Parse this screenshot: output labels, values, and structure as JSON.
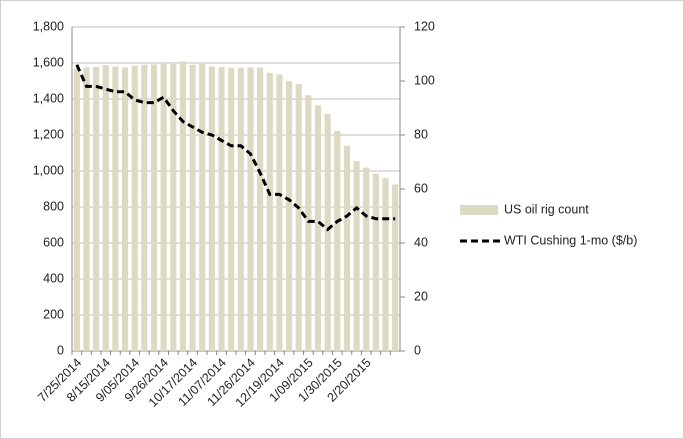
{
  "chart_data": {
    "type": "bar_line",
    "categories": [
      "7/25/2014",
      null,
      null,
      "8/15/2014",
      null,
      null,
      "9/05/2014",
      null,
      null,
      "9/26/2014",
      null,
      null,
      "10/17/2014",
      null,
      null,
      "11/07/2014",
      null,
      null,
      "11/26/2014",
      null,
      null,
      "12/19/2014",
      null,
      null,
      "1/09/2015",
      null,
      null,
      "1/30/2015",
      null,
      null,
      "2/20/2015",
      null,
      null,
      null
    ],
    "series": [
      {
        "name": "US oil rig count",
        "color": "#ddd9c3",
        "kind": "bar",
        "axis": "y",
        "values": [
          1570,
          1576,
          1578,
          1588,
          1580,
          1575,
          1585,
          1590,
          1592,
          1600,
          1595,
          1609,
          1590,
          1595,
          1580,
          1578,
          1574,
          1574,
          1575,
          1575,
          1546,
          1536,
          1499,
          1483,
          1421,
          1366,
          1317,
          1223,
          1140,
          1056,
          1019,
          986,
          960,
          925
        ]
      },
      {
        "name": "WTI Cushing 1-mo ($/b)",
        "color": "#000000",
        "kind": "line",
        "axis": "y2",
        "values": [
          106,
          98,
          98,
          97,
          96,
          96,
          93,
          92,
          92,
          94,
          89,
          85,
          83,
          81,
          80,
          78,
          76,
          76,
          73,
          66,
          58,
          58,
          56,
          53,
          48,
          48,
          45,
          48,
          50,
          53,
          50,
          49,
          49,
          49
        ]
      }
    ],
    "ylim": [
      0,
      1800
    ],
    "yticks": [
      0,
      200,
      400,
      600,
      800,
      {
        "value": 1000,
        "label": "1,000"
      },
      {
        "value": 1200,
        "label": "1,200"
      },
      {
        "value": 1400,
        "label": "1,400"
      },
      {
        "value": 1600,
        "label": "1,600"
      },
      {
        "value": 1800,
        "label": "1,800"
      }
    ],
    "y2lim": [
      0,
      120
    ],
    "y2ticks": [
      0,
      20,
      40,
      60,
      80,
      100,
      120
    ],
    "grid": true,
    "legend": "right"
  }
}
